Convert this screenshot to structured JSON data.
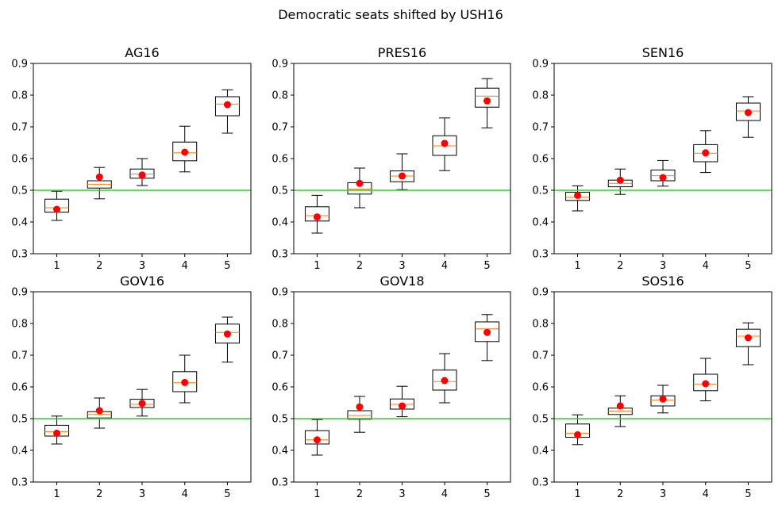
{
  "figure": {
    "suptitle": "Democratic seats shifted by USH16"
  },
  "colors": {
    "box": "#000000",
    "median": "#ff7f0e",
    "mean_marker": "#ff0000",
    "reference_line": "#32cd32",
    "background": "#ffffff"
  },
  "chart_data": [
    {
      "type": "box",
      "title": "AG16",
      "categories": [
        "1",
        "2",
        "3",
        "4",
        "5"
      ],
      "ylim": [
        0.3,
        0.9
      ],
      "yticks": [
        "0.3",
        "0.4",
        "0.5",
        "0.6",
        "0.7",
        "0.8",
        "0.9"
      ],
      "reference_line": 0.5,
      "boxes": [
        {
          "whislo": 0.405,
          "q1": 0.431,
          "med": 0.445,
          "q3": 0.472,
          "whishi": 0.497,
          "mean": 0.44
        },
        {
          "whislo": 0.473,
          "q1": 0.507,
          "med": 0.519,
          "q3": 0.53,
          "whishi": 0.572,
          "mean": 0.542
        },
        {
          "whislo": 0.515,
          "q1": 0.538,
          "med": 0.551,
          "q3": 0.567,
          "whishi": 0.6,
          "mean": 0.548
        },
        {
          "whislo": 0.558,
          "q1": 0.593,
          "med": 0.618,
          "q3": 0.652,
          "whishi": 0.702,
          "mean": 0.62
        },
        {
          "whislo": 0.68,
          "q1": 0.735,
          "med": 0.772,
          "q3": 0.795,
          "whishi": 0.817,
          "mean": 0.77
        }
      ]
    },
    {
      "type": "box",
      "title": "PRES16",
      "categories": [
        "1",
        "2",
        "3",
        "4",
        "5"
      ],
      "ylim": [
        0.3,
        0.9
      ],
      "yticks": [
        "0.3",
        "0.4",
        "0.5",
        "0.6",
        "0.7",
        "0.8",
        "0.9"
      ],
      "reference_line": 0.5,
      "boxes": [
        {
          "whislo": 0.365,
          "q1": 0.403,
          "med": 0.42,
          "q3": 0.448,
          "whishi": 0.484,
          "mean": 0.416
        },
        {
          "whislo": 0.445,
          "q1": 0.488,
          "med": 0.503,
          "q3": 0.524,
          "whishi": 0.57,
          "mean": 0.522
        },
        {
          "whislo": 0.502,
          "q1": 0.527,
          "med": 0.545,
          "q3": 0.561,
          "whishi": 0.615,
          "mean": 0.545
        },
        {
          "whislo": 0.562,
          "q1": 0.61,
          "med": 0.64,
          "q3": 0.672,
          "whishi": 0.728,
          "mean": 0.648
        },
        {
          "whislo": 0.697,
          "q1": 0.762,
          "med": 0.797,
          "q3": 0.822,
          "whishi": 0.852,
          "mean": 0.782
        }
      ]
    },
    {
      "type": "box",
      "title": "SEN16",
      "categories": [
        "1",
        "2",
        "3",
        "4",
        "5"
      ],
      "ylim": [
        0.3,
        0.9
      ],
      "yticks": [
        "0.3",
        "0.4",
        "0.5",
        "0.6",
        "0.7",
        "0.8",
        "0.9"
      ],
      "reference_line": 0.5,
      "boxes": [
        {
          "whislo": 0.435,
          "q1": 0.468,
          "med": 0.478,
          "q3": 0.494,
          "whishi": 0.514,
          "mean": 0.484
        },
        {
          "whislo": 0.487,
          "q1": 0.511,
          "med": 0.522,
          "q3": 0.532,
          "whishi": 0.567,
          "mean": 0.532
        },
        {
          "whislo": 0.513,
          "q1": 0.53,
          "med": 0.546,
          "q3": 0.564,
          "whishi": 0.594,
          "mean": 0.54
        },
        {
          "whislo": 0.556,
          "q1": 0.59,
          "med": 0.617,
          "q3": 0.644,
          "whishi": 0.688,
          "mean": 0.618
        },
        {
          "whislo": 0.667,
          "q1": 0.72,
          "med": 0.75,
          "q3": 0.775,
          "whishi": 0.795,
          "mean": 0.745
        }
      ]
    },
    {
      "type": "box",
      "title": "GOV16",
      "categories": [
        "1",
        "2",
        "3",
        "4",
        "5"
      ],
      "ylim": [
        0.3,
        0.9
      ],
      "yticks": [
        "0.3",
        "0.4",
        "0.5",
        "0.6",
        "0.7",
        "0.8",
        "0.9"
      ],
      "reference_line": 0.5,
      "boxes": [
        {
          "whislo": 0.42,
          "q1": 0.445,
          "med": 0.459,
          "q3": 0.479,
          "whishi": 0.508,
          "mean": 0.454
        },
        {
          "whislo": 0.47,
          "q1": 0.502,
          "med": 0.513,
          "q3": 0.522,
          "whishi": 0.565,
          "mean": 0.525
        },
        {
          "whislo": 0.508,
          "q1": 0.535,
          "med": 0.545,
          "q3": 0.561,
          "whishi": 0.592,
          "mean": 0.548
        },
        {
          "whislo": 0.55,
          "q1": 0.585,
          "med": 0.613,
          "q3": 0.648,
          "whishi": 0.7,
          "mean": 0.614
        },
        {
          "whislo": 0.678,
          "q1": 0.738,
          "med": 0.772,
          "q3": 0.798,
          "whishi": 0.82,
          "mean": 0.767
        }
      ]
    },
    {
      "type": "box",
      "title": "GOV18",
      "categories": [
        "1",
        "2",
        "3",
        "4",
        "5"
      ],
      "ylim": [
        0.3,
        0.9
      ],
      "yticks": [
        "0.3",
        "0.4",
        "0.5",
        "0.6",
        "0.7",
        "0.8",
        "0.9"
      ],
      "reference_line": 0.5,
      "boxes": [
        {
          "whislo": 0.385,
          "q1": 0.42,
          "med": 0.433,
          "q3": 0.462,
          "whishi": 0.497,
          "mean": 0.433
        },
        {
          "whislo": 0.457,
          "q1": 0.498,
          "med": 0.51,
          "q3": 0.525,
          "whishi": 0.57,
          "mean": 0.537
        },
        {
          "whislo": 0.506,
          "q1": 0.53,
          "med": 0.545,
          "q3": 0.562,
          "whishi": 0.602,
          "mean": 0.54
        },
        {
          "whislo": 0.55,
          "q1": 0.59,
          "med": 0.617,
          "q3": 0.653,
          "whishi": 0.705,
          "mean": 0.62
        },
        {
          "whislo": 0.683,
          "q1": 0.743,
          "med": 0.783,
          "q3": 0.805,
          "whishi": 0.828,
          "mean": 0.772
        }
      ]
    },
    {
      "type": "box",
      "title": "SOS16",
      "categories": [
        "1",
        "2",
        "3",
        "4",
        "5"
      ],
      "ylim": [
        0.3,
        0.9
      ],
      "yticks": [
        "0.3",
        "0.4",
        "0.5",
        "0.6",
        "0.7",
        "0.8",
        "0.9"
      ],
      "reference_line": 0.5,
      "boxes": [
        {
          "whislo": 0.418,
          "q1": 0.441,
          "med": 0.454,
          "q3": 0.483,
          "whishi": 0.512,
          "mean": 0.449
        },
        {
          "whislo": 0.475,
          "q1": 0.513,
          "med": 0.524,
          "q3": 0.533,
          "whishi": 0.572,
          "mean": 0.54
        },
        {
          "whislo": 0.518,
          "q1": 0.54,
          "med": 0.558,
          "q3": 0.572,
          "whishi": 0.605,
          "mean": 0.562
        },
        {
          "whislo": 0.556,
          "q1": 0.588,
          "med": 0.608,
          "q3": 0.64,
          "whishi": 0.69,
          "mean": 0.61
        },
        {
          "whislo": 0.67,
          "q1": 0.727,
          "med": 0.76,
          "q3": 0.782,
          "whishi": 0.802,
          "mean": 0.755
        }
      ]
    }
  ]
}
